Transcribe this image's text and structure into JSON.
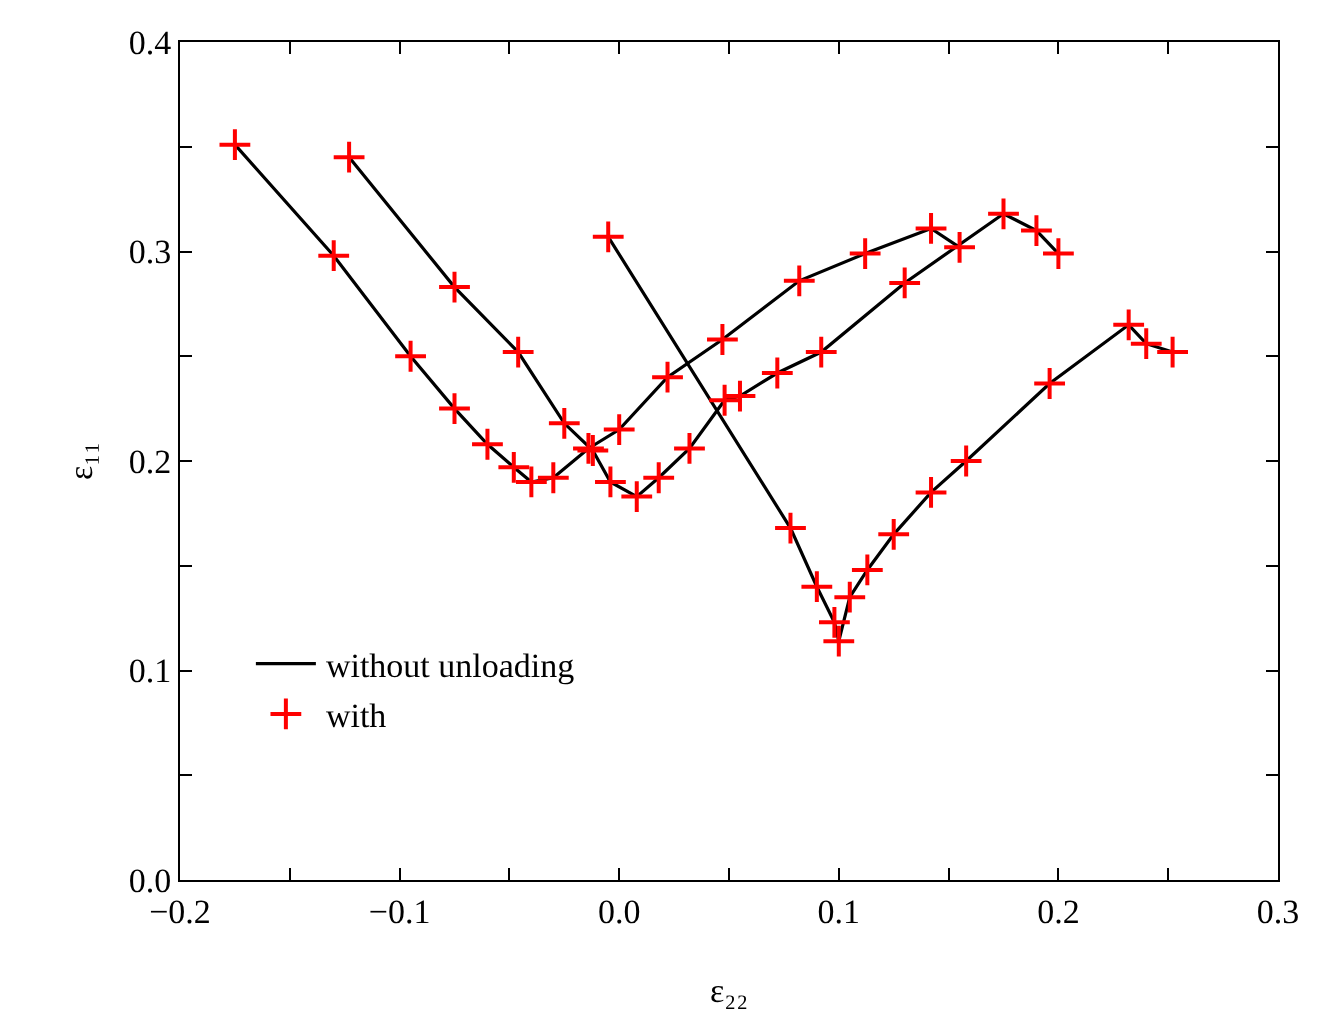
{
  "chart_data": {
    "type": "line",
    "xlabel": "ε₂₂",
    "ylabel": "ε₁₁",
    "xlim": [
      -0.2,
      0.3
    ],
    "ylim": [
      0,
      0.4
    ],
    "xticks": [
      {
        "value": -0.2,
        "label": "−0.2"
      },
      {
        "value": -0.15,
        "label": null
      },
      {
        "value": -0.1,
        "label": "−0.1"
      },
      {
        "value": -0.05,
        "label": null
      },
      {
        "value": 0,
        "label": "0.0"
      },
      {
        "value": 0.05,
        "label": null
      },
      {
        "value": 0.1,
        "label": "0.1"
      },
      {
        "value": 0.15,
        "label": null
      },
      {
        "value": 0.2,
        "label": "0.2"
      },
      {
        "value": 0.25,
        "label": null
      },
      {
        "value": 0.3,
        "label": "0.3"
      }
    ],
    "yticks": [
      {
        "value": 0,
        "label": "0.0"
      },
      {
        "value": 0.05,
        "label": null
      },
      {
        "value": 0.1,
        "label": "0.1"
      },
      {
        "value": 0.15,
        "label": null
      },
      {
        "value": 0.2,
        "label": "0.2"
      },
      {
        "value": 0.25,
        "label": null
      },
      {
        "value": 0.3,
        "label": "0.3"
      },
      {
        "value": 0.35,
        "label": null
      },
      {
        "value": 0.4,
        "label": "0.4"
      }
    ],
    "grid": false,
    "legend": "bottom left",
    "series": [
      {
        "name": "without unloading",
        "type": "line",
        "color": "#000000",
        "marker": "none",
        "line_style": "solid",
        "x": [
          -0.175,
          -0.13,
          -0.095,
          -0.075,
          -0.06,
          -0.048,
          -0.04,
          -0.03,
          -0.014,
          0.0,
          0.022,
          0.047,
          0.082,
          0.112,
          0.142,
          0.155
        ],
        "values": [
          0.351,
          0.298,
          0.25,
          0.225,
          0.208,
          0.197,
          0.19,
          0.192,
          0.206,
          0.215,
          0.24,
          0.258,
          0.286,
          0.299,
          0.311,
          0.302
        ]
      },
      {
        "type": "line",
        "color": "#000000",
        "marker": "none",
        "line_style": "solid",
        "x": [
          -0.123,
          -0.075,
          -0.046,
          -0.025,
          -0.012,
          -0.004,
          0.008,
          0.018,
          0.032,
          0.048,
          0.055,
          0.072,
          0.092,
          0.13,
          0.175,
          0.19,
          0.2
        ],
        "values": [
          0.345,
          0.283,
          0.252,
          0.218,
          0.205,
          0.19,
          0.183,
          0.192,
          0.206,
          0.229,
          0.231,
          0.242,
          0.252,
          0.285,
          0.318,
          0.31,
          0.299
        ]
      },
      {
        "type": "line",
        "color": "#000000",
        "marker": "none",
        "line_style": "solid",
        "x": [
          -0.005,
          0.078,
          0.09,
          0.098,
          0.1,
          0.105,
          0.113,
          0.125,
          0.142,
          0.158,
          0.196,
          0.232,
          0.24,
          0.252
        ],
        "values": [
          0.307,
          0.168,
          0.14,
          0.123,
          0.114,
          0.135,
          0.148,
          0.165,
          0.185,
          0.2,
          0.237,
          0.265,
          0.256,
          0.252
        ]
      },
      {
        "name": "with",
        "type": "scatter",
        "color": "#ff0000",
        "marker": "cross",
        "x": [
          -0.175,
          -0.13,
          -0.095,
          -0.075,
          -0.06,
          -0.048,
          -0.04,
          -0.03,
          -0.014,
          0.0,
          0.022,
          0.047,
          0.082,
          0.112,
          0.142,
          0.155
        ],
        "values": [
          0.351,
          0.298,
          0.25,
          0.225,
          0.208,
          0.197,
          0.19,
          0.192,
          0.206,
          0.215,
          0.24,
          0.258,
          0.286,
          0.299,
          0.311,
          0.302
        ]
      },
      {
        "type": "scatter",
        "color": "#ff0000",
        "marker": "cross",
        "x": [
          -0.123,
          -0.075,
          -0.046,
          -0.025,
          -0.012,
          -0.004,
          0.008,
          0.018,
          0.032,
          0.048,
          0.055,
          0.072,
          0.092,
          0.13,
          0.175,
          0.19,
          0.2
        ],
        "values": [
          0.345,
          0.283,
          0.252,
          0.218,
          0.205,
          0.19,
          0.183,
          0.192,
          0.206,
          0.229,
          0.231,
          0.242,
          0.252,
          0.285,
          0.318,
          0.31,
          0.299
        ]
      },
      {
        "type": "scatter",
        "color": "#ff0000",
        "marker": "cross",
        "x": [
          -0.005,
          0.078,
          0.09,
          0.098,
          0.1,
          0.105,
          0.113,
          0.125,
          0.142,
          0.158,
          0.196,
          0.232,
          0.24,
          0.252
        ],
        "values": [
          0.307,
          0.168,
          0.14,
          0.123,
          0.114,
          0.135,
          0.148,
          0.165,
          0.185,
          0.2,
          0.237,
          0.265,
          0.256,
          0.252
        ]
      }
    ]
  }
}
